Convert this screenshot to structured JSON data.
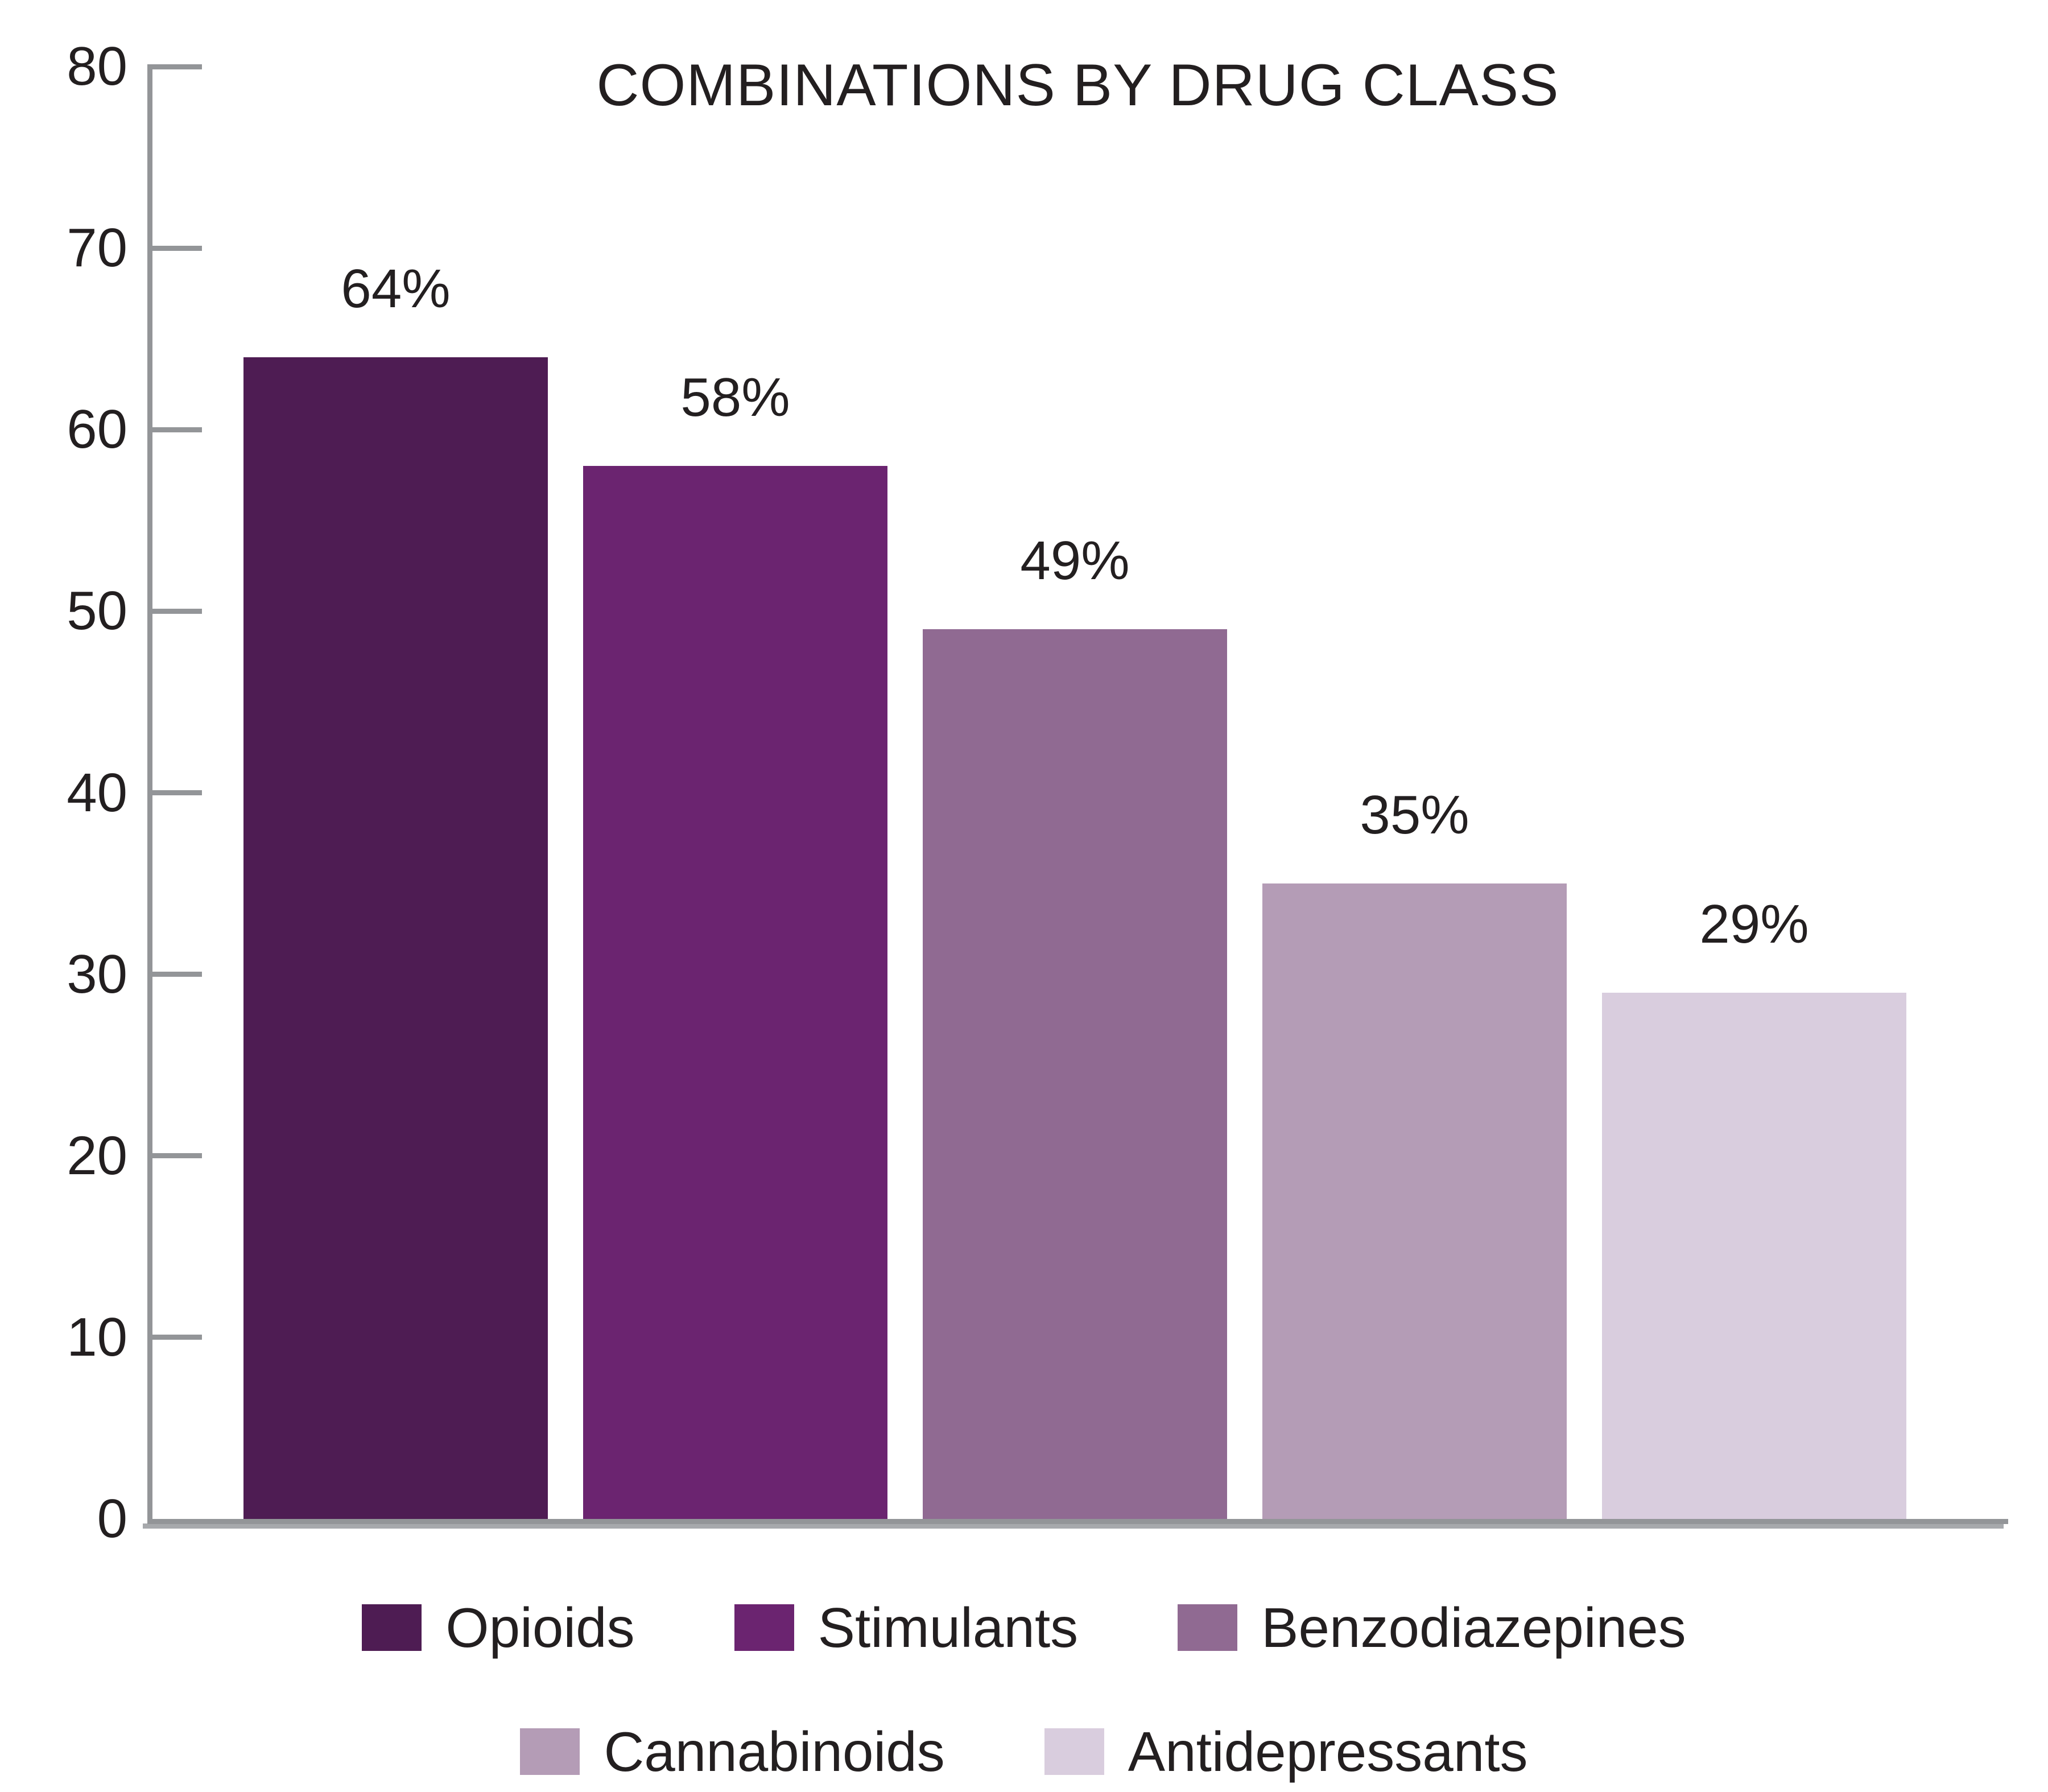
{
  "title": "COMBINATIONS BY DRUG CLASS",
  "colors": {
    "background": "#ffffff",
    "axis": "#939598",
    "axis_shadow": "#a7a9ac",
    "text": "#231f20"
  },
  "y_axis": {
    "min": 0,
    "max": 80,
    "tick_step": 10,
    "tick_labels": [
      "0",
      "10",
      "20",
      "30",
      "40",
      "50",
      "60",
      "70",
      "80"
    ]
  },
  "chart_data": {
    "type": "bar",
    "title": "COMBINATIONS BY DRUG CLASS",
    "categories": [
      "Opioids",
      "Stimulants",
      "Benzodiazepines",
      "Cannabinoids",
      "Antidepressants"
    ],
    "values": [
      64,
      58,
      49,
      35,
      29
    ],
    "value_labels": [
      "64%",
      "58%",
      "49%",
      "35%",
      "29%"
    ],
    "bar_colors": [
      "#4e1c53",
      "#6b2470",
      "#906a92",
      "#b49cb6",
      "#d9cdde"
    ],
    "xlabel": "",
    "ylabel": "",
    "ylim": [
      0,
      80
    ],
    "ytick_step": 10,
    "grid": false,
    "legend_position": "bottom",
    "legend_rows": [
      [
        "Opioids",
        "Stimulants",
        "Benzodiazepines"
      ],
      [
        "Cannabinoids",
        "Antidepressants"
      ]
    ]
  }
}
